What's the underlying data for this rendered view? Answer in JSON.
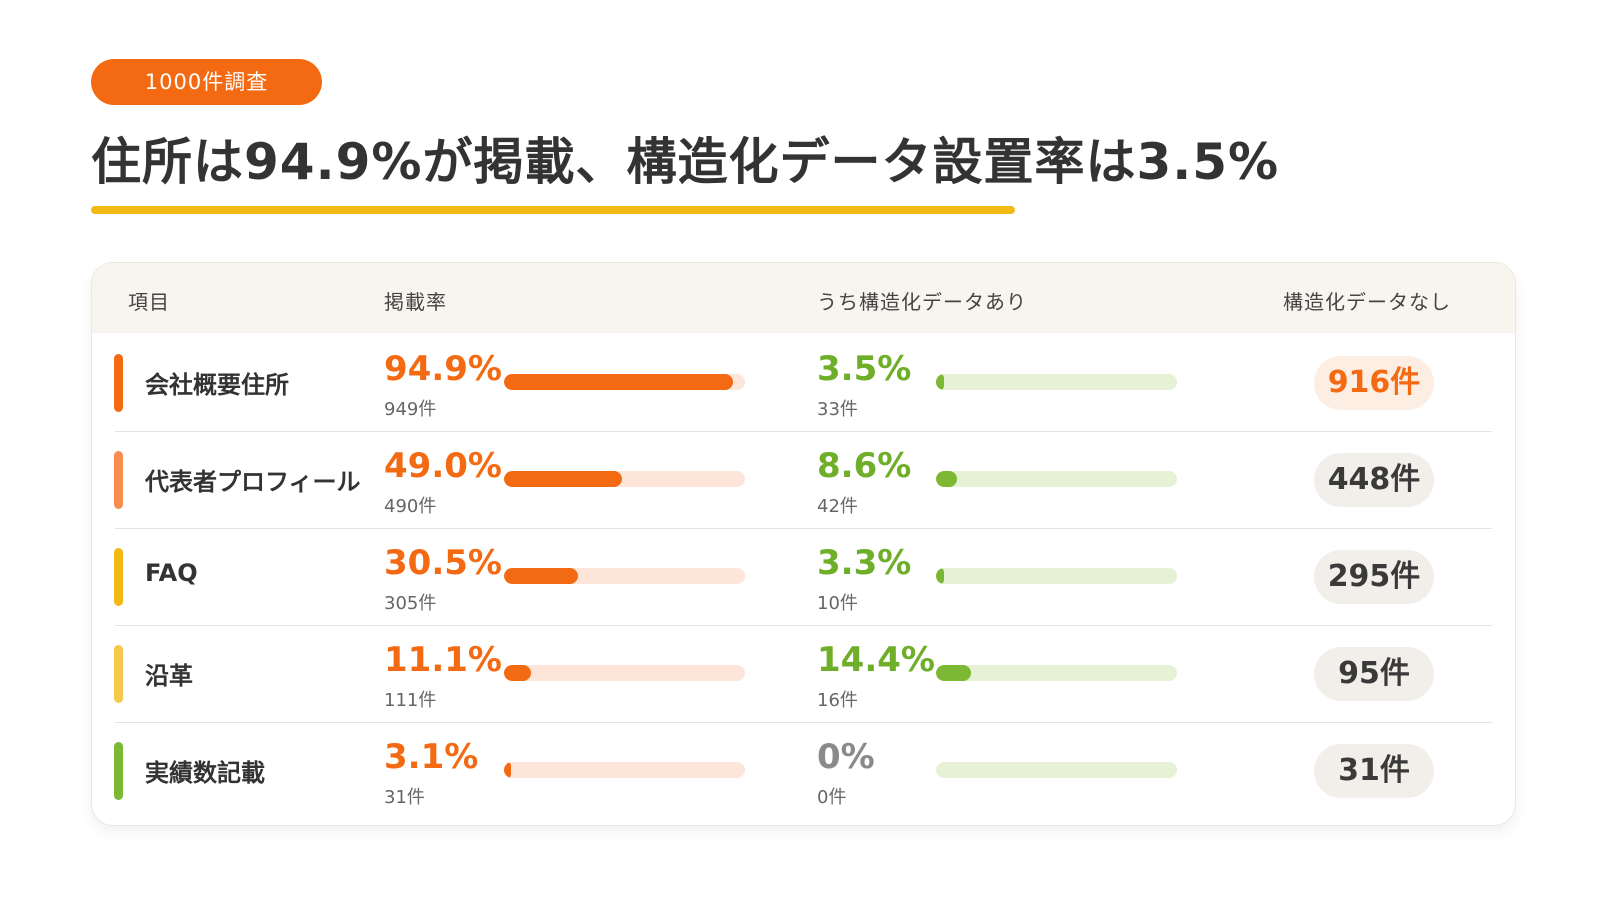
{
  "badge": "1000件調査",
  "headline": "住所は94.9%が掲載、構造化データ設置率は3.5%",
  "colors": {
    "brand_orange": "#f46a12",
    "brand_green": "#7cb833",
    "headline_rule": "#f2b814"
  },
  "table": {
    "headers": {
      "item": "項目",
      "rate": "掲載率",
      "struct": "うち構造化データあり",
      "none": "構造化データなし"
    },
    "rows": [
      {
        "label": "会社概要住所",
        "rate_pct": "94.9%",
        "rate_count": "949件",
        "struct_pct": "3.5%",
        "struct_count": "33件",
        "none": "916件",
        "accent": "#f46a12",
        "highlight": true
      },
      {
        "label": "代表者プロフィール",
        "rate_pct": "49.0%",
        "rate_count": "490件",
        "struct_pct": "8.6%",
        "struct_count": "42件",
        "none": "448件",
        "accent": "#f78d4f",
        "highlight": false
      },
      {
        "label": "FAQ",
        "rate_pct": "30.5%",
        "rate_count": "305件",
        "struct_pct": "3.3%",
        "struct_count": "10件",
        "none": "295件",
        "accent": "#f2b814",
        "highlight": false
      },
      {
        "label": "沿革",
        "rate_pct": "11.1%",
        "rate_count": "111件",
        "struct_pct": "14.4%",
        "struct_count": "16件",
        "none": "95件",
        "accent": "#f6c94a",
        "highlight": false
      },
      {
        "label": "実績数記載",
        "rate_pct": "3.1%",
        "rate_count": "31件",
        "struct_pct": "0%",
        "struct_count": "0件",
        "none": "31件",
        "accent": "#7cb833",
        "highlight": false
      }
    ]
  },
  "chart_data": {
    "type": "table",
    "categories": [
      "会社概要住所",
      "代表者プロフィール",
      "FAQ",
      "沿革",
      "実績数記載"
    ],
    "series": [
      {
        "name": "掲載率",
        "values": [
          94.9,
          49.0,
          30.5,
          11.1,
          3.1
        ]
      },
      {
        "name": "うち構造化データあり",
        "values": [
          3.5,
          8.6,
          3.3,
          14.4,
          0
        ]
      },
      {
        "name": "構造化データなし",
        "values": [
          916,
          448,
          295,
          95,
          31
        ]
      }
    ],
    "rate_counts": [
      949,
      490,
      305,
      111,
      31
    ],
    "struct_counts": [
      33,
      42,
      10,
      16,
      0
    ],
    "bar_range": [
      0,
      100
    ]
  }
}
